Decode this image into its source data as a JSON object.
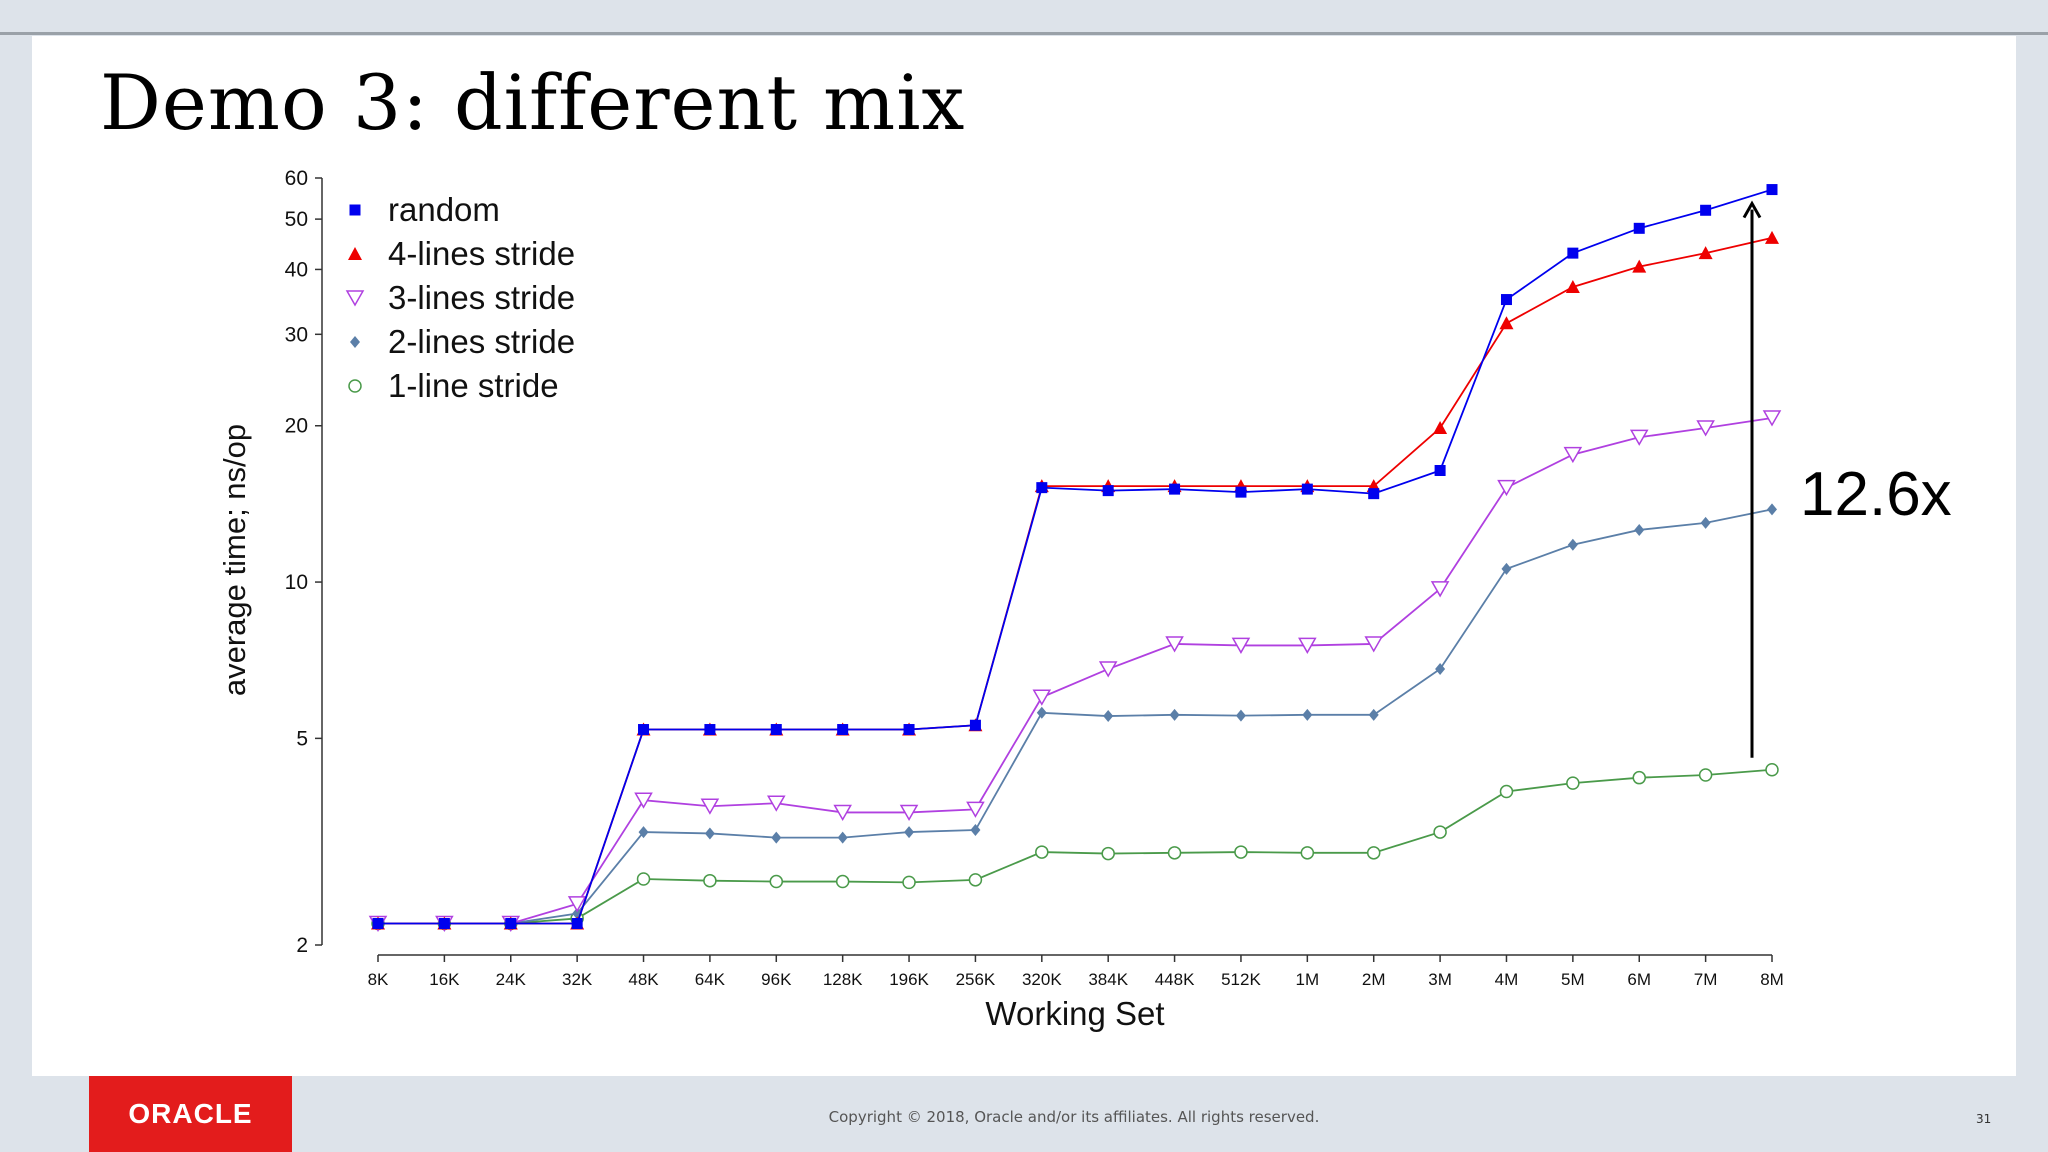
{
  "slide": {
    "title": "Demo 3: different mix",
    "annotation": "12.6x",
    "footer": {
      "logo_text": "ORACLE",
      "logo_color": "#e31c1c",
      "copyright": "Copyright © 2018, Oracle and/or its affiliates. All rights reserved.",
      "page_number": "31"
    }
  },
  "chart_data": {
    "type": "line",
    "xlabel": "Working Set",
    "ylabel": "average time; ns/op",
    "yscale": "log",
    "ylim": [
      2,
      60
    ],
    "yticks": [
      2,
      5,
      10,
      20,
      30,
      40,
      50,
      60
    ],
    "legend_position": "top-left",
    "grid": false,
    "categories": [
      "8K",
      "16K",
      "24K",
      "32K",
      "48K",
      "64K",
      "96K",
      "128K",
      "196K",
      "256K",
      "320K",
      "384K",
      "448K",
      "512K",
      "1M",
      "2M",
      "3M",
      "4M",
      "5M",
      "6M",
      "7M",
      "8M"
    ],
    "series": [
      {
        "name": "random",
        "color": "#0000ee",
        "marker": "square",
        "values": [
          2.2,
          2.2,
          2.2,
          2.2,
          5.2,
          5.2,
          5.2,
          5.2,
          5.2,
          5.3,
          15.2,
          15.0,
          15.1,
          14.9,
          15.1,
          14.8,
          16.4,
          35.0,
          43.0,
          48.0,
          52.0,
          57.0
        ]
      },
      {
        "name": "4-lines stride",
        "color": "#ee0000",
        "marker": "triangle-up",
        "values": [
          2.2,
          2.2,
          2.2,
          2.2,
          5.2,
          5.2,
          5.2,
          5.2,
          5.2,
          5.3,
          15.3,
          15.3,
          15.3,
          15.3,
          15.3,
          15.3,
          19.8,
          31.5,
          37.0,
          40.5,
          43.0,
          46.0
        ]
      },
      {
        "name": "3-lines stride",
        "color": "#b040e0",
        "marker": "triangle-down",
        "values": [
          2.2,
          2.2,
          2.2,
          2.4,
          3.8,
          3.7,
          3.75,
          3.6,
          3.6,
          3.65,
          6.0,
          6.8,
          7.6,
          7.55,
          7.55,
          7.6,
          9.7,
          15.2,
          17.6,
          19.0,
          19.8,
          20.7
        ]
      },
      {
        "name": "2-lines stride",
        "color": "#5b7fa8",
        "marker": "diamond",
        "values": [
          2.2,
          2.2,
          2.2,
          2.3,
          3.3,
          3.28,
          3.22,
          3.22,
          3.3,
          3.33,
          5.6,
          5.52,
          5.55,
          5.53,
          5.55,
          5.55,
          6.8,
          10.6,
          11.8,
          12.6,
          13.0,
          13.8
        ]
      },
      {
        "name": "1-line  stride",
        "color": "#4a9a4a",
        "marker": "circle",
        "values": [
          2.2,
          2.2,
          2.2,
          2.25,
          2.68,
          2.66,
          2.65,
          2.65,
          2.64,
          2.67,
          3.02,
          3.0,
          3.01,
          3.02,
          3.01,
          3.01,
          3.3,
          3.95,
          4.1,
          4.2,
          4.25,
          4.35
        ]
      }
    ]
  }
}
